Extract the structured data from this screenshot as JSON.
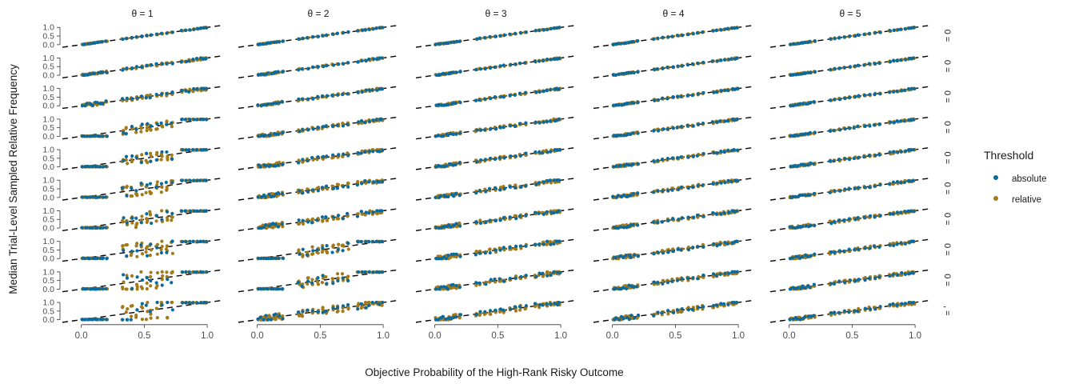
{
  "chart_data": {
    "type": "scatter",
    "column_facets": [
      "θ = 1",
      "θ = 2",
      "θ = 3",
      "θ = 4",
      "θ = 5"
    ],
    "row_facets": [
      "0 =",
      "0 =",
      "0 =",
      "0 =",
      "0 =",
      "0 =",
      "0 =",
      "0 =",
      "0 =",
      ", ="
    ],
    "xlabel": "Objective Probability of the High-Rank Risky Outcome",
    "ylabel": "Median Trial-Level Sampled Relative Frequency",
    "xlim": [
      -0.15,
      1.12
    ],
    "ylim": [
      -0.1,
      1.15
    ],
    "x_ticks": [
      "0.0",
      "0.5",
      "1.0"
    ],
    "x_tick_values": [
      0,
      0.5,
      1
    ],
    "y_ticks": [
      "0.0",
      "0.5",
      "1.0"
    ],
    "y_tick_values": [
      0,
      0.5,
      1
    ],
    "reference_line": {
      "style": "dashed",
      "color": "#000000",
      "from": [
        -0.15,
        -0.15
      ],
      "to": [
        1.12,
        1.12
      ]
    },
    "legend": {
      "title": "Threshold",
      "placement": "right",
      "entries": [
        {
          "label": "absolute",
          "color": "#0a6a9e"
        },
        {
          "label": "relative",
          "color": "#a27a1c"
        }
      ]
    },
    "x_probability_levels": [
      0.01,
      0.03,
      0.05,
      0.07,
      0.09,
      0.11,
      0.13,
      0.15,
      0.17,
      0.2,
      0.33,
      0.36,
      0.4,
      0.44,
      0.48,
      0.52,
      0.55,
      0.6,
      0.64,
      0.68,
      0.72,
      0.8,
      0.83,
      0.86,
      0.89,
      0.92,
      0.95,
      0.97,
      0.99
    ],
    "series": [
      {
        "name": "absolute",
        "color": "#0a6a9e"
      },
      {
        "name": "relative",
        "color": "#a27a1c"
      }
    ],
    "grid": false
  }
}
